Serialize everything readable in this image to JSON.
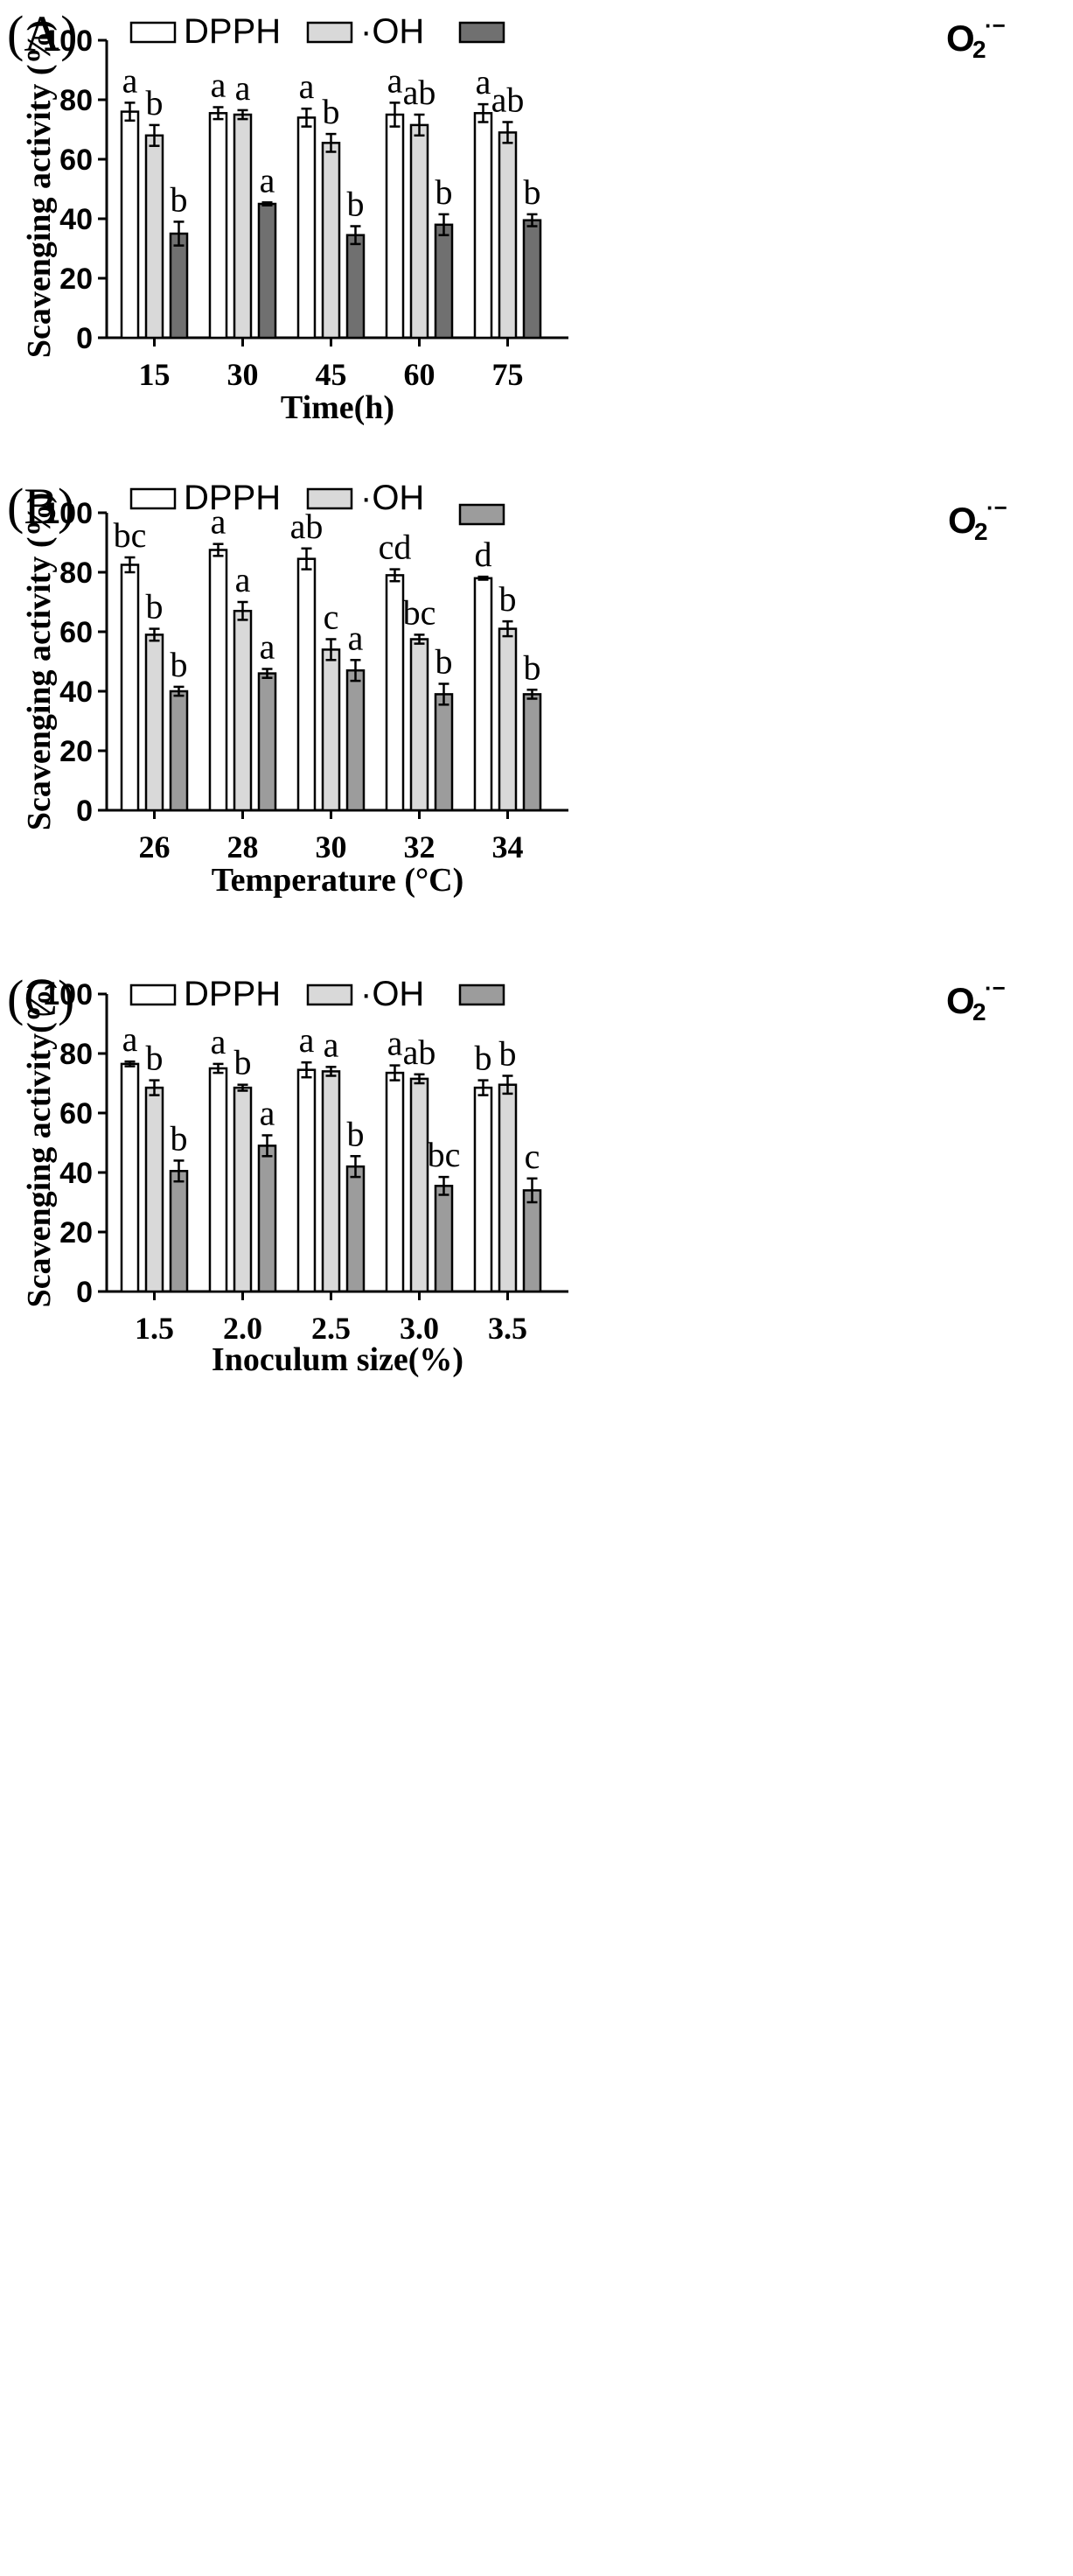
{
  "colors": {
    "dpph": "#ffffff",
    "oh": "#d9d9d9",
    "o2_A": "#707070",
    "o2_BC": "#9c9c9c",
    "stroke": "#000000"
  },
  "chart_data": [
    {
      "type": "bar",
      "panel_label": "(A)",
      "xlabel": "Time(h)",
      "ylabel": "Scavenging activity (%)",
      "ylim": [
        0,
        100
      ],
      "yticks": [
        "0",
        "20",
        "40",
        "60",
        "80",
        "100"
      ],
      "categories": [
        "15",
        "30",
        "45",
        "60",
        "75"
      ],
      "legend": {
        "dpph": "DPPH",
        "oh": "·OH",
        "o2_main": "O",
        "o2_sub": "2",
        "o2_sup": "·−"
      },
      "o2_color_key": "o2_A",
      "series": [
        {
          "name": "DPPH",
          "values": [
            76,
            75.5,
            74,
            75,
            75.5
          ],
          "errors": [
            3,
            2,
            3,
            4,
            3
          ],
          "labels": [
            "a",
            "a",
            "a",
            "a",
            "a"
          ]
        },
        {
          "name": "·OH",
          "values": [
            68,
            75,
            65.5,
            71.5,
            69
          ],
          "errors": [
            3.5,
            1.5,
            3,
            3.5,
            3.5
          ],
          "labels": [
            "b",
            "a",
            "b",
            "ab",
            "ab"
          ]
        },
        {
          "name": "O2·−",
          "values": [
            35,
            45,
            34.5,
            38,
            39.5
          ],
          "errors": [
            4,
            0.5,
            3,
            3.5,
            2
          ],
          "labels": [
            "b",
            "a",
            "b",
            "b",
            "b"
          ]
        }
      ]
    },
    {
      "type": "bar",
      "panel_label": "(B)",
      "xlabel": "Temperature (°C)",
      "ylabel": "Scavenging activity (%)",
      "ylim": [
        0,
        100
      ],
      "yticks": [
        "0",
        "20",
        "40",
        "60",
        "80",
        "100"
      ],
      "categories": [
        "26",
        "28",
        "30",
        "32",
        "34"
      ],
      "legend": {
        "dpph": "DPPH",
        "oh": "·OH",
        "o2_main": "O",
        "o2_sub": "2",
        "o2_sup": "·−"
      },
      "o2_color_key": "o2_BC",
      "series": [
        {
          "name": "DPPH",
          "values": [
            82.5,
            87.5,
            84.5,
            79,
            78
          ],
          "errors": [
            2.5,
            2,
            3.5,
            2,
            0.5
          ],
          "labels": [
            "bc",
            "a",
            "ab",
            "cd",
            "d"
          ]
        },
        {
          "name": "·OH",
          "values": [
            59,
            67,
            54,
            57.5,
            61
          ],
          "errors": [
            2,
            3,
            3.5,
            1.5,
            2.5
          ],
          "labels": [
            "b",
            "a",
            "c",
            "bc",
            "b"
          ]
        },
        {
          "name": "O2·−",
          "values": [
            40,
            46,
            47,
            39,
            39
          ],
          "errors": [
            1.5,
            1.5,
            3.5,
            3.5,
            1.5
          ],
          "labels": [
            "b",
            "a",
            "a",
            "b",
            "b"
          ]
        }
      ]
    },
    {
      "type": "bar",
      "panel_label": "(C)",
      "xlabel": "Inoculum size(%)",
      "ylabel": "Scavenging activity(%)",
      "ylim": [
        0,
        100
      ],
      "yticks": [
        "0",
        "20",
        "40",
        "60",
        "80",
        "100"
      ],
      "categories": [
        "1.5",
        "2.0",
        "2.5",
        "3.0",
        "3.5"
      ],
      "legend": {
        "dpph": "DPPH",
        "oh": "·OH",
        "o2_main": "O",
        "o2_sub": "2",
        "o2_sup": "·−"
      },
      "o2_color_key": "o2_BC",
      "series": [
        {
          "name": "DPPH",
          "values": [
            76.5,
            75,
            74.5,
            73.5,
            68.5
          ],
          "errors": [
            0.8,
            1.5,
            2.5,
            2.5,
            2.5
          ],
          "labels": [
            "a",
            "a",
            "a",
            "a",
            "b"
          ]
        },
        {
          "name": "·OH",
          "values": [
            68.5,
            68.5,
            74,
            71.5,
            69.5
          ],
          "errors": [
            2.5,
            1,
            1.5,
            1.5,
            3
          ],
          "labels": [
            "b",
            "b",
            "a",
            "ab",
            "b"
          ]
        },
        {
          "name": "O2·−",
          "values": [
            40.5,
            49,
            42,
            35.5,
            34
          ],
          "errors": [
            3.5,
            3.5,
            3.5,
            3,
            4
          ],
          "labels": [
            "b",
            "a",
            "b",
            "bc",
            "c"
          ]
        }
      ]
    }
  ]
}
